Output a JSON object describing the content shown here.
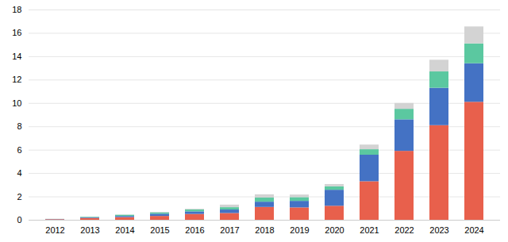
{
  "chart_data": {
    "type": "bar",
    "stacked": true,
    "grid": true,
    "categories": [
      "2012",
      "2013",
      "2014",
      "2015",
      "2016",
      "2017",
      "2018",
      "2019",
      "2020",
      "2021",
      "2022",
      "2023",
      "2024"
    ],
    "series": [
      {
        "color": "#E8604C",
        "values": [
          0.05,
          0.16,
          0.23,
          0.33,
          0.5,
          0.58,
          1.1,
          1.06,
          1.2,
          3.3,
          5.9,
          8.1,
          10.1
        ]
      },
      {
        "color": "#4472C4",
        "values": [
          0.02,
          0.05,
          0.1,
          0.19,
          0.22,
          0.3,
          0.45,
          0.56,
          1.37,
          2.27,
          2.7,
          3.2,
          3.3
        ]
      },
      {
        "color": "#5BC8A0",
        "values": [
          0.005,
          0.05,
          0.1,
          0.12,
          0.16,
          0.2,
          0.35,
          0.32,
          0.29,
          0.47,
          0.9,
          1.4,
          1.7
        ]
      },
      {
        "color": "#D3D3D3",
        "values": [
          0.005,
          0.01,
          0.02,
          0.04,
          0.06,
          0.22,
          0.28,
          0.22,
          0.2,
          0.4,
          0.5,
          1.0,
          1.45
        ]
      }
    ],
    "ylim": [
      0,
      18
    ],
    "yticks": [
      0,
      2,
      4,
      6,
      8,
      10,
      12,
      14,
      16,
      18
    ]
  }
}
